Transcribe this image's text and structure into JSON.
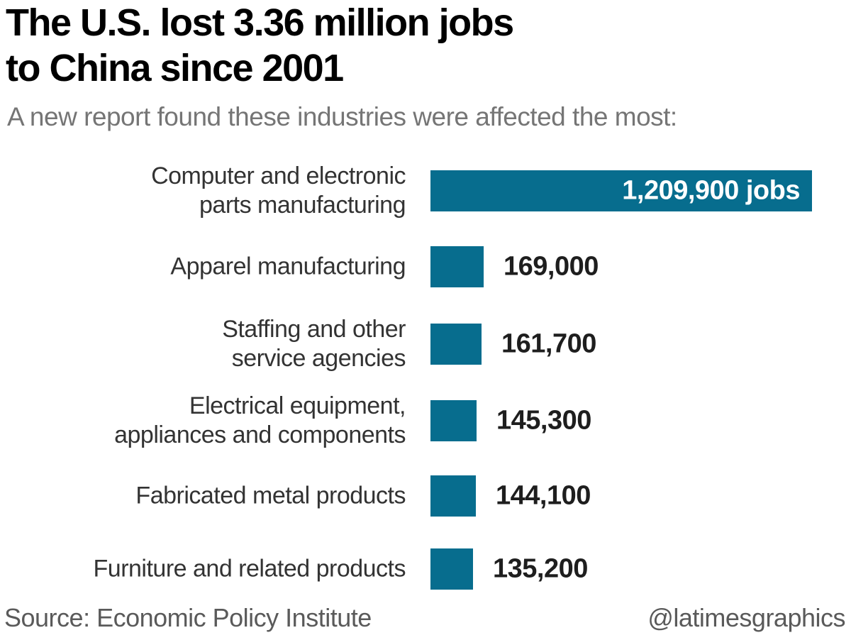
{
  "header": {
    "title_line1": "The U.S. lost 3.36 million jobs",
    "title_line2": "to China since 2001",
    "subtitle": "A new report found these industries were affected the most:"
  },
  "chart_data": {
    "type": "bar",
    "orientation": "horizontal",
    "title": "The U.S. lost 3.36 million jobs to China since 2001",
    "subtitle": "A new report found these industries were affected the most:",
    "categories": [
      "Computer and electronic parts manufacturing",
      "Apparel manufacturing",
      "Staffing and other service agencies",
      "Electrical equipment, appliances and components",
      "Fabricated metal products",
      "Furniture and related products"
    ],
    "label_lines": [
      [
        "Computer and electronic",
        "parts manufacturing"
      ],
      [
        "Apparel manufacturing"
      ],
      [
        "Staffing and other",
        "service agencies"
      ],
      [
        "Electrical equipment,",
        "appliances and components"
      ],
      [
        "Fabricated metal products"
      ],
      [
        "Furniture and related products"
      ]
    ],
    "values": [
      1209900,
      169000,
      161700,
      145300,
      144100,
      135200
    ],
    "value_labels": [
      "1,209,900 jobs",
      "169,000",
      "161,700",
      "145,300",
      "144,100",
      "135,200"
    ],
    "value_inside_bar": [
      true,
      false,
      false,
      false,
      false,
      false
    ],
    "bar_color": "#076d8e",
    "xlim": [
      0,
      1209900
    ],
    "grid": "off",
    "legend": "none"
  },
  "footer": {
    "source": "Source: Economic Policy Institute",
    "credit": "@latimesgraphics"
  }
}
